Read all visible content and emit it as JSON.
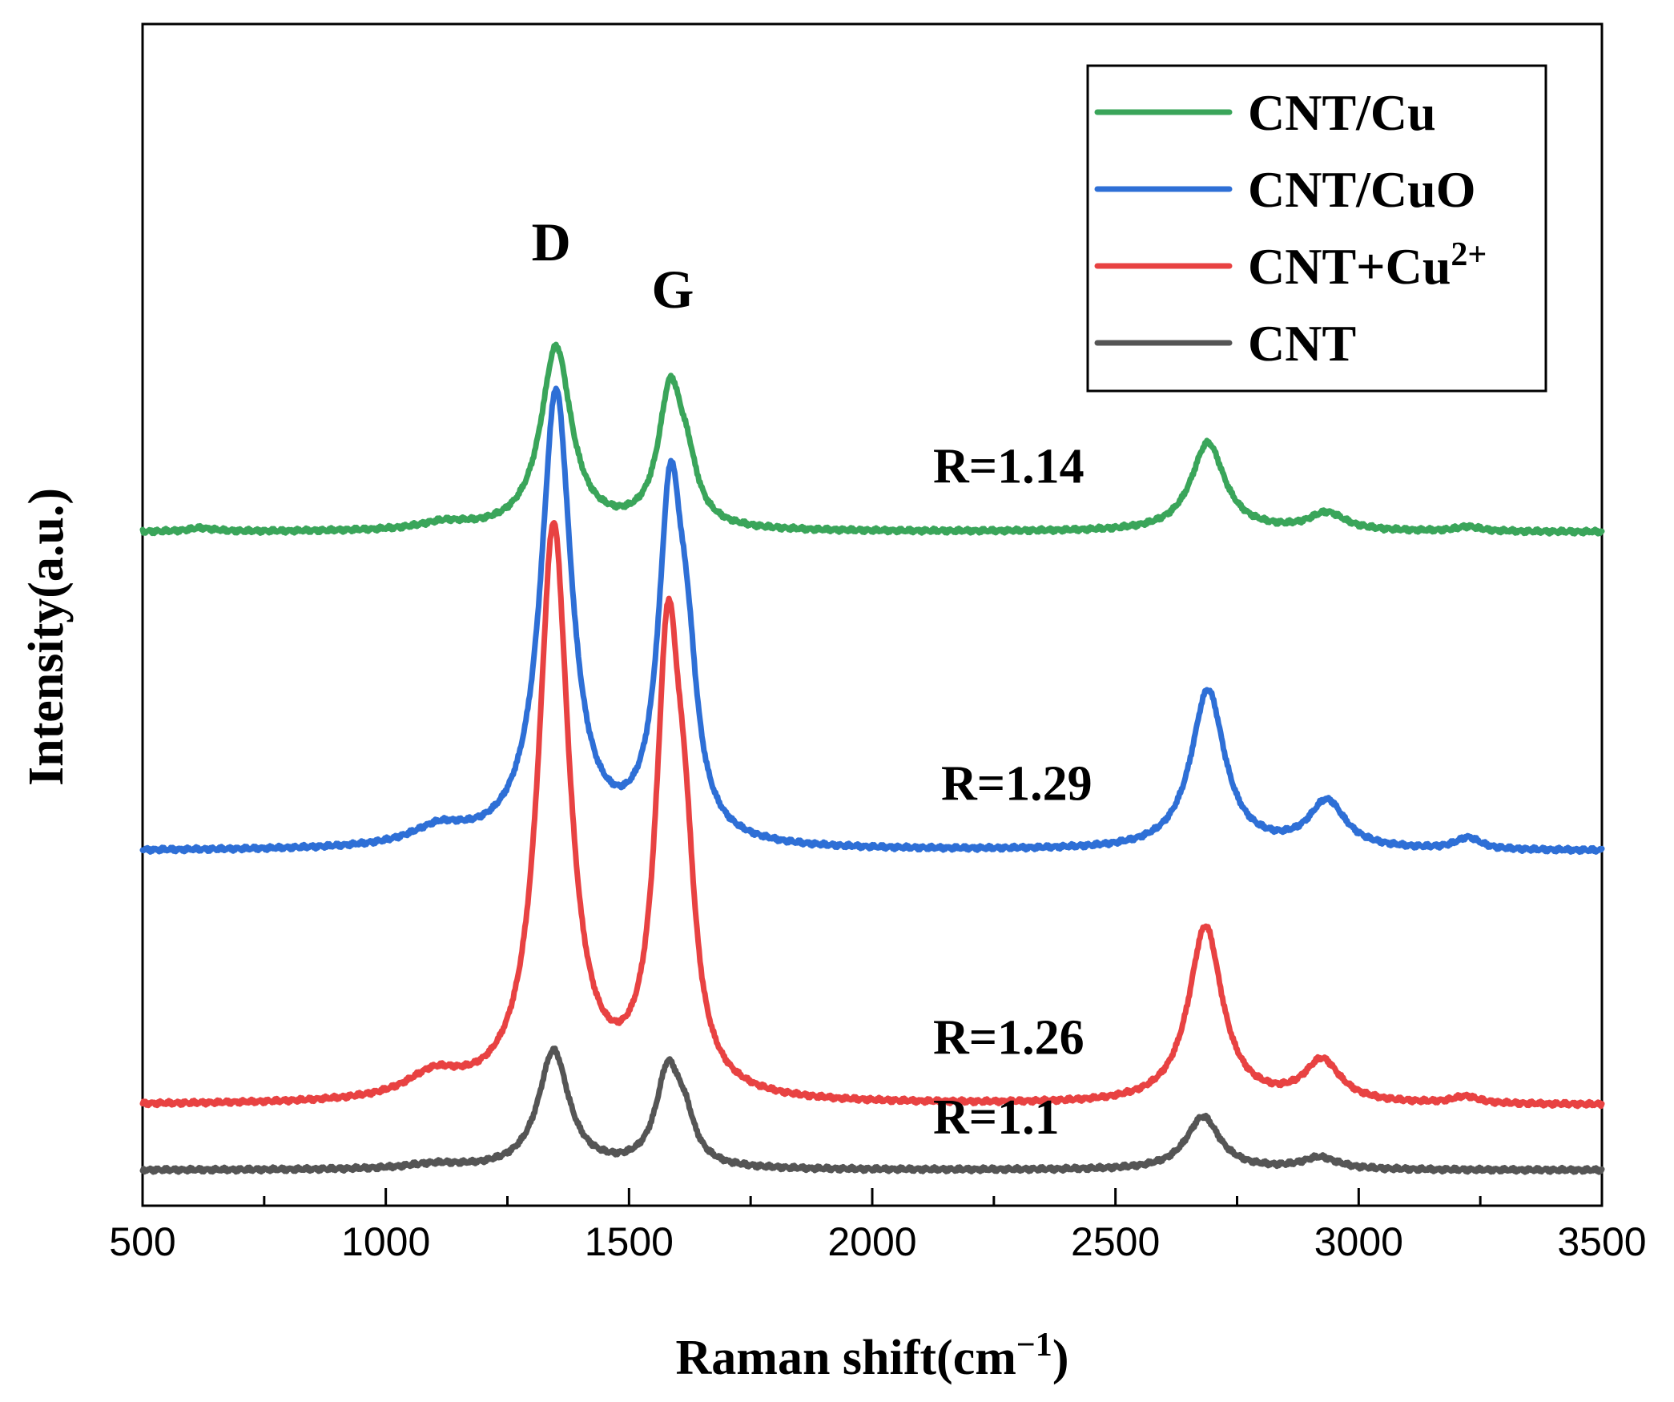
{
  "chart_data": {
    "type": "line",
    "title": "",
    "xlabel": "Raman shift(cm",
    "xlabel_sup": "−1",
    "xlabel_suffix": ")",
    "ylabel": "Intensity(a.u.)",
    "xlim": [
      500,
      3500
    ],
    "ylim": [
      0,
      100
    ],
    "x_ticks": [
      500,
      1000,
      1500,
      2000,
      2500,
      3000,
      3500
    ],
    "x_tick_labels": [
      "500",
      "1000",
      "1500",
      "2000",
      "2500",
      "3000",
      "3500"
    ],
    "y_ticks_shown": false,
    "legend_position": "top-right",
    "series": [
      {
        "name": "CNT/Cu",
        "legend_label": "CNT/Cu",
        "legend_sup": "",
        "color": "#3aa55a",
        "baseline": 57,
        "peaks": [
          {
            "x": 1350,
            "height": 15.5,
            "width": 38
          },
          {
            "x": 1585,
            "height": 11.5,
            "width": 30
          },
          {
            "x": 1620,
            "height": 3.5,
            "width": 25
          },
          {
            "x": 2690,
            "height": 7.5,
            "width": 42
          },
          {
            "x": 2935,
            "height": 1.5,
            "width": 45
          },
          {
            "x": 1120,
            "height": 0.6,
            "width": 60
          },
          {
            "x": 620,
            "height": 0.3,
            "width": 30
          },
          {
            "x": 3225,
            "height": 0.4,
            "width": 30
          }
        ],
        "annotation": "R=1.14"
      },
      {
        "name": "CNT/CuO",
        "legend_label": "CNT/CuO",
        "legend_sup": "",
        "color": "#2e6fd6",
        "baseline": 30,
        "peaks": [
          {
            "x": 1350,
            "height": 38.5,
            "width": 38
          },
          {
            "x": 1585,
            "height": 28.5,
            "width": 30
          },
          {
            "x": 1620,
            "height": 10,
            "width": 25
          },
          {
            "x": 2690,
            "height": 13.5,
            "width": 42
          },
          {
            "x": 2935,
            "height": 4,
            "width": 45
          },
          {
            "x": 1110,
            "height": 1.5,
            "width": 70
          },
          {
            "x": 3225,
            "height": 1,
            "width": 30
          }
        ],
        "annotation": "R=1.29"
      },
      {
        "name": "CNT+Cu2+",
        "legend_label": "CNT+Cu",
        "legend_sup": "2+",
        "color": "#e84242",
        "baseline": 8.5,
        "peaks": [
          {
            "x": 1345,
            "height": 48.5,
            "width": 38
          },
          {
            "x": 1580,
            "height": 37,
            "width": 30
          },
          {
            "x": 1615,
            "height": 13,
            "width": 25
          },
          {
            "x": 2685,
            "height": 15,
            "width": 42
          },
          {
            "x": 2925,
            "height": 3.5,
            "width": 45
          },
          {
            "x": 1100,
            "height": 2,
            "width": 70
          },
          {
            "x": 3220,
            "height": 0.6,
            "width": 30
          }
        ],
        "annotation": "R=1.26"
      },
      {
        "name": "CNT",
        "legend_label": "CNT",
        "legend_sup": "",
        "color": "#555555",
        "baseline": 3,
        "peaks": [
          {
            "x": 1345,
            "height": 10,
            "width": 38
          },
          {
            "x": 1580,
            "height": 8,
            "width": 30
          },
          {
            "x": 1615,
            "height": 3,
            "width": 25
          },
          {
            "x": 2680,
            "height": 4.5,
            "width": 42
          },
          {
            "x": 2920,
            "height": 1,
            "width": 45
          },
          {
            "x": 1100,
            "height": 0.4,
            "width": 70
          }
        ],
        "annotation": "R=1.1"
      }
    ],
    "peak_labels": [
      {
        "text": "D",
        "x": 1340,
        "y": 80
      },
      {
        "text": "G",
        "x": 1590,
        "y": 76
      }
    ]
  }
}
